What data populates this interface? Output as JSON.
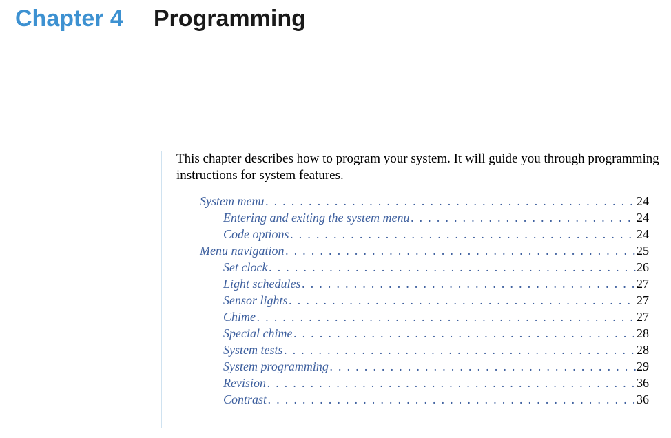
{
  "header": {
    "chapter_label": "Chapter 4",
    "chapter_title": "Programming"
  },
  "intro": "This chapter describes how to program your system. It will guide you through programming instructions for system features.",
  "toc": [
    {
      "label": "System menu",
      "page": "24",
      "indent": 0
    },
    {
      "label": "Entering and exiting the system menu",
      "page": "24",
      "indent": 1
    },
    {
      "label": "Code options",
      "page": "24",
      "indent": 1
    },
    {
      "label": "Menu navigation",
      "page": "25",
      "indent": 0
    },
    {
      "label": "Set clock",
      "page": "26",
      "indent": 1
    },
    {
      "label": "Light schedules",
      "page": "27",
      "indent": 1
    },
    {
      "label": "Sensor lights",
      "page": "27",
      "indent": 1
    },
    {
      "label": "Chime",
      "page": "27",
      "indent": 1
    },
    {
      "label": "Special chime",
      "page": "28",
      "indent": 1
    },
    {
      "label": "System tests",
      "page": "28",
      "indent": 1
    },
    {
      "label": "System programming",
      "page": "29",
      "indent": 1
    },
    {
      "label": "Revision",
      "page": "36",
      "indent": 1
    },
    {
      "label": "Contrast",
      "page": "36",
      "indent": 1
    }
  ],
  "colors": {
    "chapter_blue": "#3d91d1",
    "link_blue": "#3d5f9e",
    "rule_blue": "#cfe2f0",
    "text": "#000000",
    "background": "#ffffff"
  }
}
